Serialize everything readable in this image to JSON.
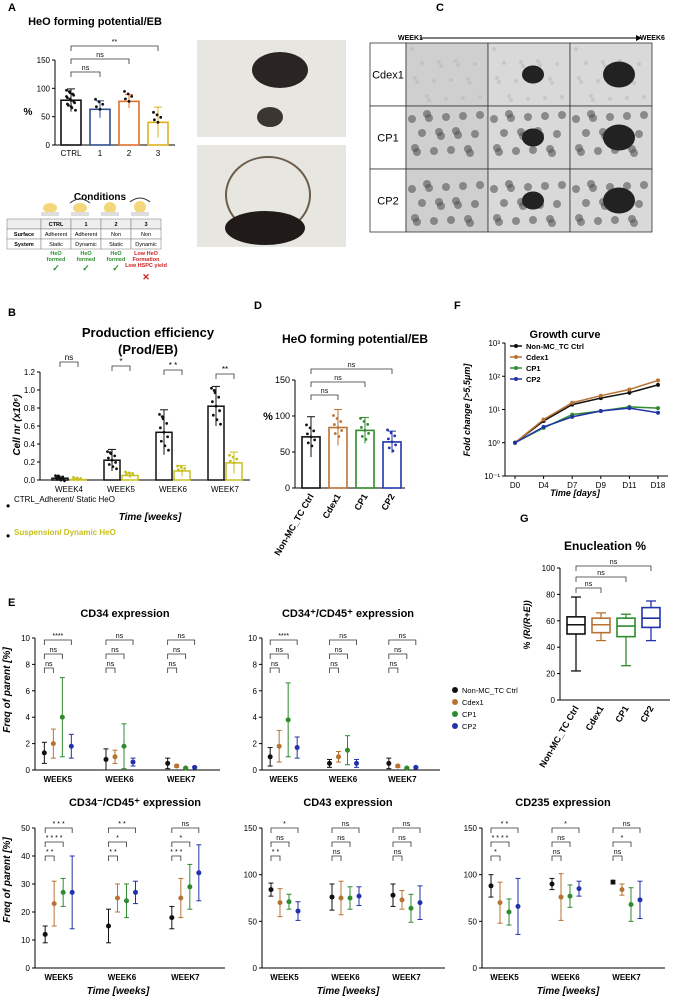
{
  "panels": {
    "A": {
      "label": "A",
      "title": "HeO forming potential/EB",
      "ylabel": "%",
      "conditions_title": "Conditions",
      "table": {
        "headers": [
          "",
          "CTRL",
          "1",
          "2",
          "3"
        ],
        "rows": [
          [
            "Surface",
            "Adherent",
            "Adherent",
            "Non",
            "Non"
          ],
          [
            "System",
            "Static",
            "Dynamic",
            "Static",
            "Dynamic"
          ]
        ],
        "outcomes": [
          "HeO formed",
          "HeO formed",
          "HeO formed",
          "Low HeO Formation Low HSPC yield"
        ]
      }
    },
    "B": {
      "label": "B",
      "title": "Production efficiency",
      "subtitle": "(Prod/EB)",
      "ylabel": "Cell nr (x10⁶)",
      "xlabel": "Time [weeks]",
      "legend": [
        "CTRL_Adherent/ Static HeO",
        "Suspension/ Dynamic HeO"
      ]
    },
    "C": {
      "label": "C",
      "week_start": "WEEK1",
      "week_end": "WEEK6",
      "rows": [
        "Cdex1",
        "CP1",
        "CP2"
      ]
    },
    "D": {
      "label": "D",
      "title": "HeO forming potential/EB",
      "ylabel": "%"
    },
    "E": {
      "label": "E",
      "titles": [
        "CD34 expression",
        "CD34⁺/CD45⁺ expression",
        "CD34⁻/CD45⁺ expression",
        "CD43 expression",
        "CD235 expression"
      ],
      "ylabel": "Freq of parent [%]",
      "xlabel": "Time [weeks]",
      "legend": [
        "Non-MC_TC Ctrl",
        "Cdex1",
        "CP1",
        "CP2"
      ]
    },
    "F": {
      "label": "F",
      "title": "Growth curve",
      "ylabel": "Fold change [>5,5μm]",
      "xlabel": "Time [days]",
      "legend": [
        "Non-MC_TC Ctrl",
        "Cdex1",
        "CP1",
        "CP2"
      ]
    },
    "G": {
      "label": "G",
      "title": "Enucleation %",
      "ylabel": "% (R/(R+E))"
    }
  },
  "colors": {
    "ctrl": "#111111",
    "cdex1": "#b87333",
    "cp1": "#2e8b2e",
    "cp2": "#2233aa",
    "c1": "#2f4f8f",
    "c2": "#e0702a",
    "c3": "#e0b020",
    "yellow": "#c8c020",
    "red": "#cc2222",
    "green": "#2e8b2e"
  },
  "chart_data": [
    {
      "id": "A",
      "type": "bar",
      "categories": [
        "CTRL",
        "1",
        "2",
        "3"
      ],
      "values": [
        79,
        63,
        77,
        40
      ],
      "errors": [
        20,
        15,
        12,
        27
      ],
      "ylim": [
        0,
        150
      ],
      "yticks": [
        0,
        50,
        100,
        150
      ],
      "significance": [
        {
          "from": 0,
          "to": 1,
          "label": "ns"
        },
        {
          "from": 0,
          "to": 2,
          "label": "ns"
        },
        {
          "from": 0,
          "to": 3,
          "label": "**"
        }
      ]
    },
    {
      "id": "B",
      "type": "bar",
      "categories": [
        "WEEK4",
        "WEEK5",
        "WEEK6",
        "WEEK7"
      ],
      "series": [
        {
          "values": [
            0.02,
            0.22,
            0.53,
            0.82
          ],
          "errors": [
            0.01,
            0.12,
            0.25,
            0.22
          ]
        },
        {
          "values": [
            0.005,
            0.05,
            0.1,
            0.19
          ],
          "errors": [
            0.005,
            0.03,
            0.06,
            0.12
          ]
        }
      ],
      "ylim": [
        0,
        1.2
      ],
      "yticks": [
        0.0,
        0.2,
        0.4,
        0.6,
        0.8,
        1.0,
        1.2
      ],
      "significance": [
        "ns",
        "*",
        "* *",
        "**"
      ]
    },
    {
      "id": "D",
      "type": "bar",
      "categories": [
        "Non-MC_TC Ctrl",
        "Cdex1",
        "CP1",
        "CP2"
      ],
      "values": [
        71,
        84,
        80,
        64
      ],
      "errors": [
        28,
        25,
        18,
        15
      ],
      "ylim": [
        0,
        150
      ],
      "yticks": [
        0,
        50,
        100,
        150
      ],
      "significance": [
        {
          "from": 0,
          "to": 1,
          "label": "ns"
        },
        {
          "from": 0,
          "to": 2,
          "label": "ns"
        },
        {
          "from": 0,
          "to": 3,
          "label": "ns"
        }
      ]
    },
    {
      "id": "F",
      "type": "line",
      "x": [
        "D0",
        "D4",
        "D7",
        "D9",
        "D11",
        "D18"
      ],
      "ylog": true,
      "ylim": [
        0.1,
        1000
      ],
      "yticks": [
        "10⁻¹",
        "10⁰",
        "10¹",
        "10²",
        "10³"
      ],
      "series": [
        {
          "name": "Non-MC_TC Ctrl",
          "values": [
            1,
            4.5,
            14,
            22,
            32,
            55
          ]
        },
        {
          "name": "Cdex1",
          "values": [
            1,
            5,
            16,
            26,
            40,
            75
          ]
        },
        {
          "name": "CP1",
          "values": [
            1,
            2.8,
            7,
            9,
            12,
            11
          ]
        },
        {
          "name": "CP2",
          "values": [
            1,
            3,
            6,
            9,
            11,
            8
          ]
        }
      ]
    },
    {
      "id": "G",
      "type": "box",
      "categories": [
        "Non-MC_TC Ctrl",
        "Cdex1",
        "CP1",
        "CP2"
      ],
      "ylim": [
        0,
        100
      ],
      "yticks": [
        0,
        20,
        40,
        60,
        80,
        100
      ],
      "boxes": [
        [
          22,
          50,
          57,
          63,
          78
        ],
        [
          45,
          51,
          57,
          62,
          66
        ],
        [
          26,
          48,
          56,
          62,
          65
        ],
        [
          45,
          55,
          62,
          70,
          75
        ]
      ],
      "significance": [
        {
          "from": 0,
          "to": 1,
          "label": "ns"
        },
        {
          "from": 0,
          "to": 2,
          "label": "ns"
        },
        {
          "from": 0,
          "to": 3,
          "label": "ns"
        }
      ]
    },
    {
      "id": "E1",
      "type": "scatter",
      "categories": [
        "WEEK5",
        "WEEK6",
        "WEEK7"
      ],
      "ylim": [
        0,
        10
      ],
      "yticks": [
        0,
        2,
        4,
        6,
        8,
        10
      ],
      "series": [
        [
          [
            1.3,
            0.8
          ],
          [
            0.8,
            0.8
          ],
          [
            0.5,
            0.4
          ]
        ],
        [
          [
            2.0,
            1.1
          ],
          [
            1.0,
            0.5
          ],
          [
            0.3,
            0.1
          ]
        ],
        [
          [
            4.0,
            3.0
          ],
          [
            1.8,
            1.7
          ],
          [
            0.15,
            0.05
          ]
        ],
        [
          [
            1.8,
            0.9
          ],
          [
            0.6,
            0.3
          ],
          [
            0.2,
            0.05
          ]
        ]
      ],
      "sig": [
        [
          "****",
          "ns",
          "ns"
        ],
        [
          "ns",
          "ns",
          "ns"
        ],
        [
          "ns",
          "ns",
          "ns"
        ]
      ]
    },
    {
      "id": "E2",
      "type": "scatter",
      "categories": [
        "WEEK5",
        "WEEK6",
        "WEEK7"
      ],
      "ylim": [
        0,
        10
      ],
      "yticks": [
        0,
        2,
        4,
        6,
        8,
        10
      ],
      "series": [
        [
          [
            1.0,
            0.7
          ],
          [
            0.5,
            0.3
          ],
          [
            0.5,
            0.4
          ]
        ],
        [
          [
            1.8,
            1.2
          ],
          [
            1.0,
            0.4
          ],
          [
            0.3,
            0.1
          ]
        ],
        [
          [
            3.8,
            2.8
          ],
          [
            1.5,
            1.1
          ],
          [
            0.15,
            0.05
          ]
        ],
        [
          [
            1.7,
            0.8
          ],
          [
            0.5,
            0.3
          ],
          [
            0.2,
            0.05
          ]
        ]
      ],
      "sig": [
        [
          "****",
          "ns",
          "ns"
        ],
        [
          "ns",
          "ns",
          "ns"
        ],
        [
          "ns",
          "ns",
          "ns"
        ]
      ]
    },
    {
      "id": "E3",
      "type": "scatter",
      "categories": [
        "WEEK5",
        "WEEK6",
        "WEEK7"
      ],
      "ylim": [
        0,
        50
      ],
      "yticks": [
        0,
        10,
        20,
        30,
        40,
        50
      ],
      "series": [
        [
          [
            12,
            3
          ],
          [
            15,
            6
          ],
          [
            18,
            4
          ]
        ],
        [
          [
            23,
            8
          ],
          [
            25,
            5
          ],
          [
            25,
            7
          ]
        ],
        [
          [
            27,
            5
          ],
          [
            24,
            6
          ],
          [
            29,
            8
          ]
        ],
        [
          [
            27,
            13
          ],
          [
            27,
            4
          ],
          [
            34,
            10
          ]
        ]
      ],
      "sig": [
        [
          "* * *",
          "* *",
          "ns"
        ],
        [
          "* * * *",
          "*",
          "*"
        ],
        [
          "* *",
          "* *",
          "* * *"
        ]
      ]
    },
    {
      "id": "E4",
      "type": "scatter",
      "categories": [
        "WEEK5",
        "WEEK6",
        "WEEK7"
      ],
      "ylim": [
        0,
        150
      ],
      "yticks": [
        0,
        50,
        100,
        150
      ],
      "series": [
        [
          [
            84,
            7
          ],
          [
            76,
            14
          ],
          [
            78,
            12
          ]
        ],
        [
          [
            70,
            15
          ],
          [
            75,
            18
          ],
          [
            73,
            10
          ]
        ],
        [
          [
            71,
            8
          ],
          [
            75,
            12
          ],
          [
            64,
            15
          ]
        ],
        [
          [
            61,
            10
          ],
          [
            77,
            10
          ],
          [
            70,
            18
          ]
        ]
      ],
      "sig": [
        [
          "*",
          "ns",
          "ns"
        ],
        [
          "ns",
          "ns",
          "ns"
        ],
        [
          "* *",
          "ns",
          "ns"
        ]
      ]
    },
    {
      "id": "E5",
      "type": "scatter",
      "categories": [
        "WEEK5",
        "WEEK6",
        "WEEK7"
      ],
      "ylim": [
        0,
        150
      ],
      "yticks": [
        0,
        50,
        100,
        150
      ],
      "series": [
        [
          [
            88,
            12
          ],
          [
            90,
            6
          ],
          [
            92,
            2
          ]
        ],
        [
          [
            70,
            22
          ],
          [
            76,
            25
          ],
          [
            84,
            6
          ]
        ],
        [
          [
            60,
            14
          ],
          [
            77,
            12
          ],
          [
            68,
            18
          ]
        ],
        [
          [
            66,
            30
          ],
          [
            85,
            8
          ],
          [
            73,
            20
          ]
        ]
      ],
      "sig": [
        [
          "* *",
          "*",
          "ns"
        ],
        [
          "* * * *",
          "ns",
          "*"
        ],
        [
          "*",
          "ns",
          "ns"
        ]
      ]
    }
  ]
}
